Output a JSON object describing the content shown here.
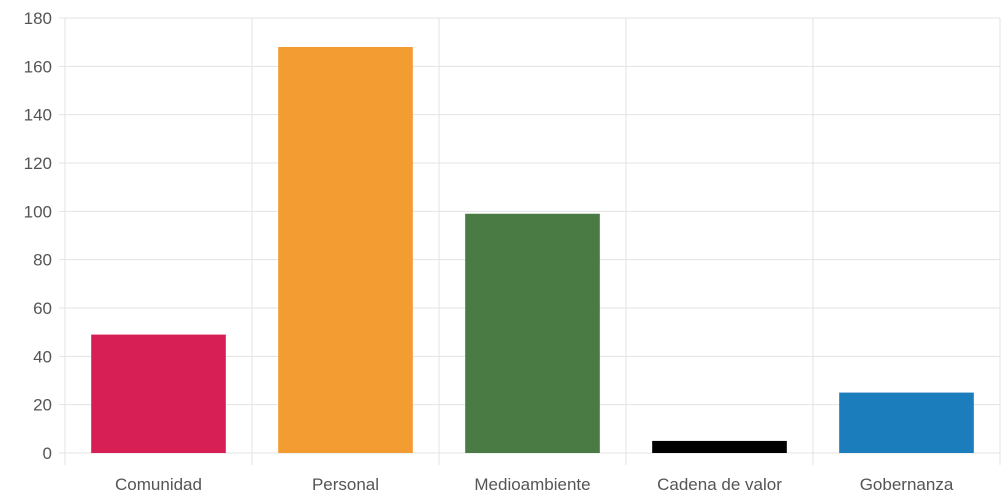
{
  "chart_data": {
    "type": "bar",
    "categories": [
      "Comunidad",
      "Personal",
      "Medioambiente",
      "Cadena de valor",
      "Gobernanza"
    ],
    "values": [
      49,
      168,
      99,
      5,
      25
    ],
    "colors": [
      "#d81f55",
      "#f39c32",
      "#4b7b45",
      "#000000",
      "#1c7dbd"
    ],
    "title": "",
    "xlabel": "",
    "ylabel": "",
    "ylim": [
      0,
      180
    ],
    "yticks": [
      0,
      20,
      40,
      60,
      80,
      100,
      120,
      140,
      160,
      180
    ],
    "grid": true,
    "legend": "none"
  }
}
